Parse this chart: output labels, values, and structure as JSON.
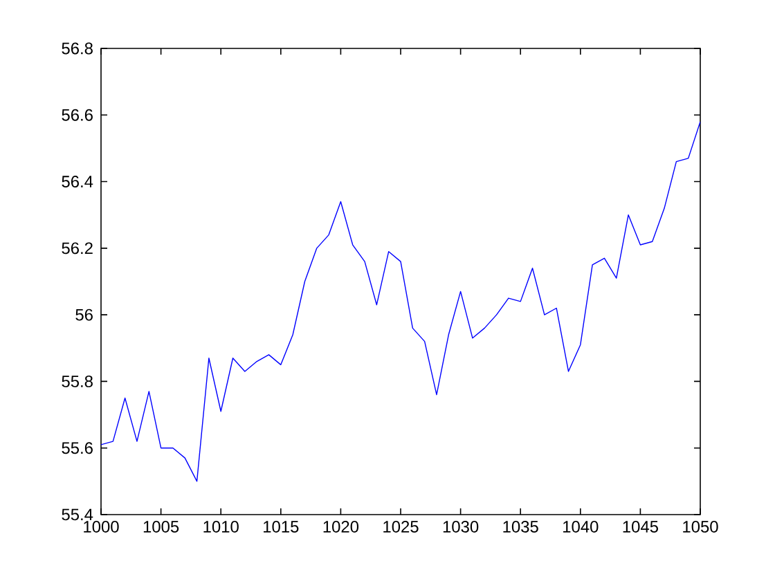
{
  "chart_data": {
    "type": "line",
    "x": [
      1000,
      1001,
      1002,
      1003,
      1004,
      1005,
      1006,
      1007,
      1008,
      1009,
      1010,
      1011,
      1012,
      1013,
      1014,
      1015,
      1016,
      1017,
      1018,
      1019,
      1020,
      1021,
      1022,
      1023,
      1024,
      1025,
      1026,
      1027,
      1028,
      1029,
      1030,
      1031,
      1032,
      1033,
      1034,
      1035,
      1036,
      1037,
      1038,
      1039,
      1040,
      1041,
      1042,
      1043,
      1044,
      1045,
      1046,
      1047,
      1048,
      1049,
      1050
    ],
    "series": [
      {
        "color": "#0000ff",
        "values": [
          55.61,
          55.62,
          55.75,
          55.62,
          55.77,
          55.6,
          55.6,
          55.57,
          55.5,
          55.87,
          55.71,
          55.87,
          55.83,
          55.86,
          55.88,
          55.85,
          55.94,
          56.1,
          56.2,
          56.24,
          56.34,
          56.21,
          56.16,
          56.03,
          56.19,
          56.16,
          55.96,
          55.92,
          55.76,
          55.94,
          56.07,
          55.93,
          55.96,
          56.0,
          56.05,
          56.04,
          56.14,
          56.0,
          56.02,
          55.83,
          55.91,
          56.15,
          56.17,
          56.11,
          56.3,
          56.21,
          56.22,
          56.32,
          56.46,
          56.47,
          56.58
        ]
      }
    ],
    "xlim": [
      1000,
      1050
    ],
    "ylim": [
      55.4,
      56.8
    ],
    "xticks": [
      1000,
      1005,
      1010,
      1015,
      1020,
      1025,
      1030,
      1035,
      1040,
      1045,
      1050
    ],
    "yticks": [
      55.4,
      55.6,
      55.8,
      56,
      56.2,
      56.4,
      56.6,
      56.8
    ],
    "marker": "none",
    "line_style": "solid"
  }
}
